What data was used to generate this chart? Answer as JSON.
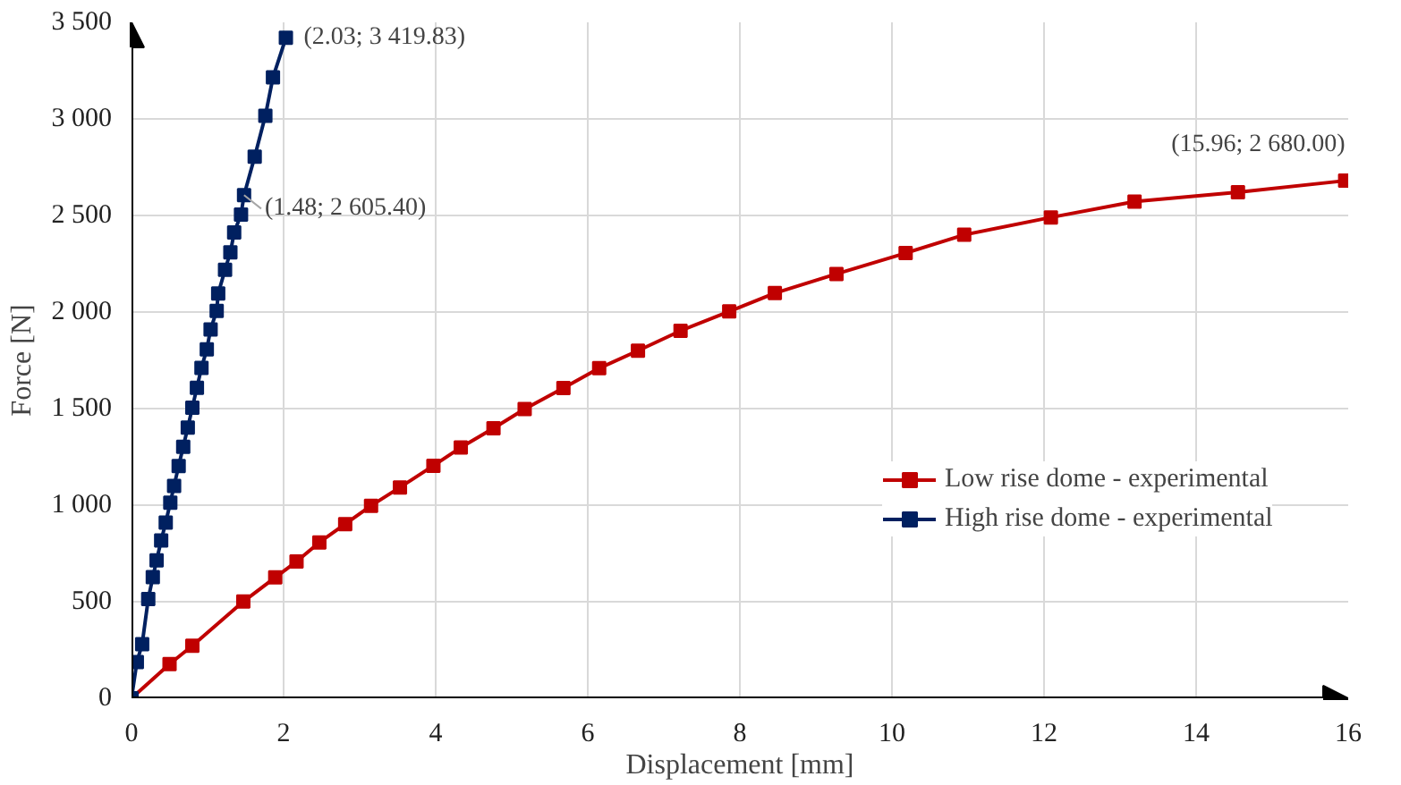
{
  "chart_data": {
    "type": "line",
    "xlabel": "Displacement [mm]",
    "ylabel": "Force [N]",
    "xlim": [
      0,
      16
    ],
    "ylim": [
      0,
      3500
    ],
    "xticks": [
      0,
      2,
      4,
      6,
      8,
      10,
      12,
      14,
      16
    ],
    "yticks": [
      0,
      500,
      {
        "value": 1000,
        "label": "1 000"
      },
      {
        "value": 1500,
        "label": "1 500"
      },
      {
        "value": 2000,
        "label": "2 000"
      },
      {
        "value": 2500,
        "label": "2 500"
      },
      {
        "value": 3000,
        "label": "3 000"
      },
      {
        "value": 3500,
        "label": "3 500"
      }
    ],
    "grid": true,
    "legend": "right",
    "marker": "square",
    "line_style": "solid",
    "series": [
      {
        "name": "Low rise dome - experimental",
        "color": "#c00000",
        "x": [
          0,
          0.5,
          0.8,
          1.47,
          1.89,
          2.17,
          2.47,
          2.81,
          3.15,
          3.53,
          3.97,
          4.33,
          4.76,
          5.17,
          5.68,
          6.15,
          6.66,
          7.22,
          7.86,
          8.46,
          9.27,
          10.18,
          10.95,
          12.09,
          13.19,
          14.55,
          15.96
        ],
        "values": [
          0,
          177,
          272,
          501,
          626,
          708,
          807,
          902,
          997,
          1092,
          1204,
          1299,
          1398,
          1498,
          1606,
          1709,
          1800,
          1903,
          2003,
          2098,
          2197,
          2305,
          2400,
          2490,
          2572,
          2620,
          2680.0
        ]
      },
      {
        "name": "High rise dome - experimental",
        "color": "#002060",
        "x": [
          0,
          0.07,
          0.14,
          0.22,
          0.28,
          0.33,
          0.39,
          0.45,
          0.51,
          0.56,
          0.62,
          0.68,
          0.74,
          0.8,
          0.86,
          0.92,
          0.99,
          1.04,
          1.12,
          1.14,
          1.23,
          1.3,
          1.35,
          1.44,
          1.48,
          1.62,
          1.76,
          1.86,
          2.03
        ],
        "values": [
          0,
          187,
          280,
          514,
          627,
          714,
          817,
          910,
          1013,
          1100,
          1203,
          1302,
          1402,
          1505,
          1608,
          1711,
          1807,
          1910,
          2006,
          2096,
          2219,
          2309,
          2412,
          2505,
          2605.4,
          2804,
          3016,
          3215,
          3419.83
        ]
      }
    ],
    "annotations": [
      {
        "text": "(2.03; 3 419.83)",
        "x": 2.03,
        "y": 3419.83
      },
      {
        "text": "(1.48; 2 605.40)",
        "x": 1.48,
        "y": 2605.4
      },
      {
        "text": "(15.96; 2 680.00)",
        "x": 15.96,
        "y": 2680.0
      }
    ]
  }
}
